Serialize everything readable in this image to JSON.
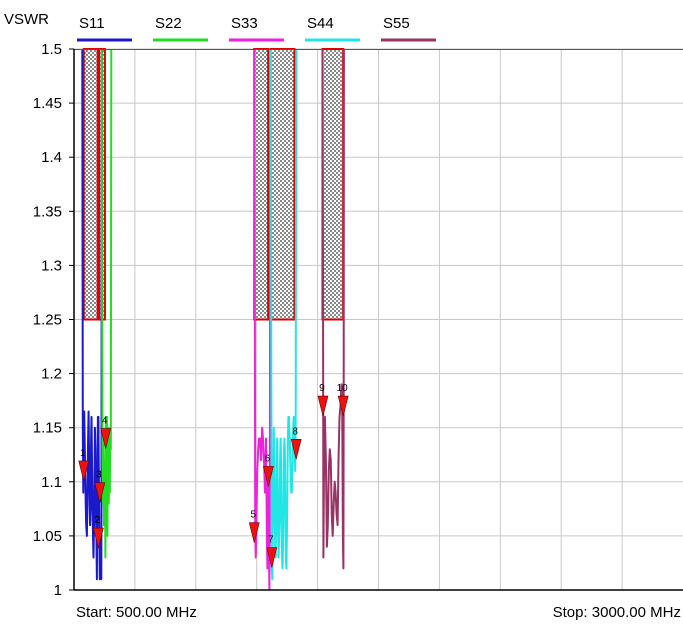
{
  "chart_data": {
    "type": "line",
    "ylabel": "VSWR",
    "ylim": [
      1,
      1.5
    ],
    "yticks": [
      "1",
      "1.05",
      "1.1",
      "1.15",
      "1.2",
      "1.25",
      "1.3",
      "1.35",
      "1.4",
      "1.45",
      "1.5"
    ],
    "xlim": [
      500,
      3000
    ],
    "x_unit": "MHz",
    "grid": true,
    "legend_position": "top",
    "start_label": "Start: 500.00 MHz",
    "stop_label": "Stop: 3000.00 MHz",
    "series": [
      {
        "name": "S11",
        "color": "#1a1acc",
        "x": [
          528,
          534,
          536,
          538,
          540,
          542,
          545,
          548,
          550,
          553,
          556,
          558,
          560,
          562,
          564,
          566,
          568,
          570,
          572,
          574,
          576,
          578,
          580,
          582,
          584,
          586,
          588,
          590,
          592,
          594,
          596,
          598,
          600,
          602,
          604,
          606,
          608,
          610,
          612,
          613,
          614
        ],
        "y": [
          1.5,
          1.5,
          1.15,
          1.09,
          1.13,
          1.165,
          1.12,
          1.08,
          1.06,
          1.05,
          1.1,
          1.14,
          1.165,
          1.12,
          1.08,
          1.06,
          1.075,
          1.14,
          1.16,
          1.12,
          1.08,
          1.05,
          1.03,
          1.06,
          1.1,
          1.15,
          1.13,
          1.07,
          1.05,
          1.01,
          1.11,
          1.16,
          1.16,
          1.11,
          1.05,
          1.01,
          1.02,
          1.02,
          1.01,
          1.1,
          1.5
        ]
      },
      {
        "name": "S22",
        "color": "#22dd22",
        "x": [
          613,
          614,
          615,
          617,
          619,
          621,
          623,
          625,
          627,
          629,
          631,
          633,
          635,
          637,
          639,
          641,
          643,
          645,
          647,
          649,
          651,
          653,
          655
        ],
        "y": [
          1.5,
          1.5,
          1.3,
          1.12,
          1.08,
          1.14,
          1.06,
          1.1,
          1.12,
          1.03,
          1.16,
          1.09,
          1.16,
          1.05,
          1.12,
          1.15,
          1.08,
          1.13,
          1.09,
          1.15,
          1.13,
          1.5,
          1.5
        ]
      },
      {
        "name": "S33",
        "color": "#ee22dd",
        "x": [
          1238,
          1240,
          1242,
          1244,
          1246,
          1248,
          1252,
          1256,
          1260,
          1264,
          1268,
          1272,
          1276,
          1280,
          1284,
          1286,
          1288,
          1290,
          1292,
          1294,
          1296,
          1298,
          1300,
          1302,
          1304,
          1306,
          1308
        ],
        "y": [
          1.5,
          1.5,
          1.3,
          1.06,
          1.03,
          1.05,
          1.11,
          1.13,
          1.14,
          1.14,
          1.12,
          1.15,
          1.14,
          1.12,
          1.09,
          1.11,
          1.14,
          1.1,
          1.05,
          1.02,
          1.07,
          1.1,
          1.05,
          1.0,
          1.1,
          1.5,
          1.5
        ]
      },
      {
        "name": "S44",
        "color": "#22e6e6",
        "x": [
          1307,
          1308,
          1310,
          1312,
          1314,
          1316,
          1318,
          1320,
          1322,
          1324,
          1326,
          1328,
          1330,
          1332,
          1334,
          1336,
          1338,
          1340,
          1342,
          1344,
          1346,
          1348,
          1350,
          1352,
          1354,
          1356,
          1358,
          1360,
          1362,
          1364,
          1366,
          1368,
          1370,
          1372,
          1374,
          1376,
          1378,
          1380,
          1382,
          1384,
          1386,
          1388,
          1390,
          1392,
          1394,
          1396,
          1398,
          1400,
          1402,
          1404,
          1406,
          1408,
          1410,
          1412
        ],
        "y": [
          1.5,
          1.5,
          1.2,
          1.02,
          1.01,
          1.05,
          1.1,
          1.15,
          1.12,
          1.08,
          1.04,
          1.03,
          1.07,
          1.12,
          1.14,
          1.11,
          1.05,
          1.03,
          1.05,
          1.07,
          1.12,
          1.14,
          1.12,
          1.06,
          1.03,
          1.02,
          1.04,
          1.09,
          1.13,
          1.14,
          1.12,
          1.06,
          1.03,
          1.02,
          1.05,
          1.1,
          1.14,
          1.16,
          1.16,
          1.15,
          1.14,
          1.12,
          1.1,
          1.09,
          1.09,
          1.11,
          1.13,
          1.15,
          1.16,
          1.15,
          1.13,
          1.11,
          1.16,
          1.5
        ]
      },
      {
        "name": "S55",
        "color": "#993366",
        "x": [
          500,
          1520,
          1522,
          1524,
          1526,
          1530,
          1534,
          1538,
          1542,
          1546,
          1550,
          1554,
          1558,
          1562,
          1566,
          1570,
          1574,
          1578,
          1582,
          1586,
          1590,
          1594,
          1598,
          1601,
          1604,
          1606,
          1607,
          1608,
          3000
        ],
        "y": [
          1.5,
          1.5,
          1.3,
          1.03,
          1.1,
          1.16,
          1.12,
          1.04,
          1.06,
          1.11,
          1.13,
          1.12,
          1.07,
          1.05,
          1.08,
          1.1,
          1.09,
          1.07,
          1.06,
          1.12,
          1.16,
          1.17,
          1.19,
          1.17,
          1.05,
          1.02,
          1.2,
          1.5,
          1.5
        ]
      }
    ],
    "limit_masks": [
      {
        "x_start": 540,
        "x_end": 597,
        "y_top": 1.5,
        "y_bottom": 1.25
      },
      {
        "x_start": 603,
        "x_end": 627,
        "y_top": 1.5,
        "y_bottom": 1.25
      },
      {
        "x_start": 1240,
        "x_end": 1297,
        "y_top": 1.5,
        "y_bottom": 1.25
      },
      {
        "x_start": 1307,
        "x_end": 1405,
        "y_top": 1.5,
        "y_bottom": 1.25
      },
      {
        "x_start": 1520,
        "x_end": 1605,
        "y_top": 1.5,
        "y_bottom": 1.25
      }
    ],
    "markers": [
      {
        "label": "1",
        "x": 540,
        "y": 1.11
      },
      {
        "label": "2",
        "x": 600,
        "y": 1.048
      },
      {
        "label": "3",
        "x": 606,
        "y": 1.09
      },
      {
        "label": "4",
        "x": 630,
        "y": 1.14
      },
      {
        "label": "5",
        "x": 1240,
        "y": 1.053
      },
      {
        "label": "6",
        "x": 1298,
        "y": 1.105
      },
      {
        "label": "7",
        "x": 1312,
        "y": 1.03
      },
      {
        "label": "8",
        "x": 1412,
        "y": 1.13
      },
      {
        "label": "9",
        "x": 1522,
        "y": 1.17
      },
      {
        "label": "10",
        "x": 1605,
        "y": 1.17
      }
    ]
  }
}
